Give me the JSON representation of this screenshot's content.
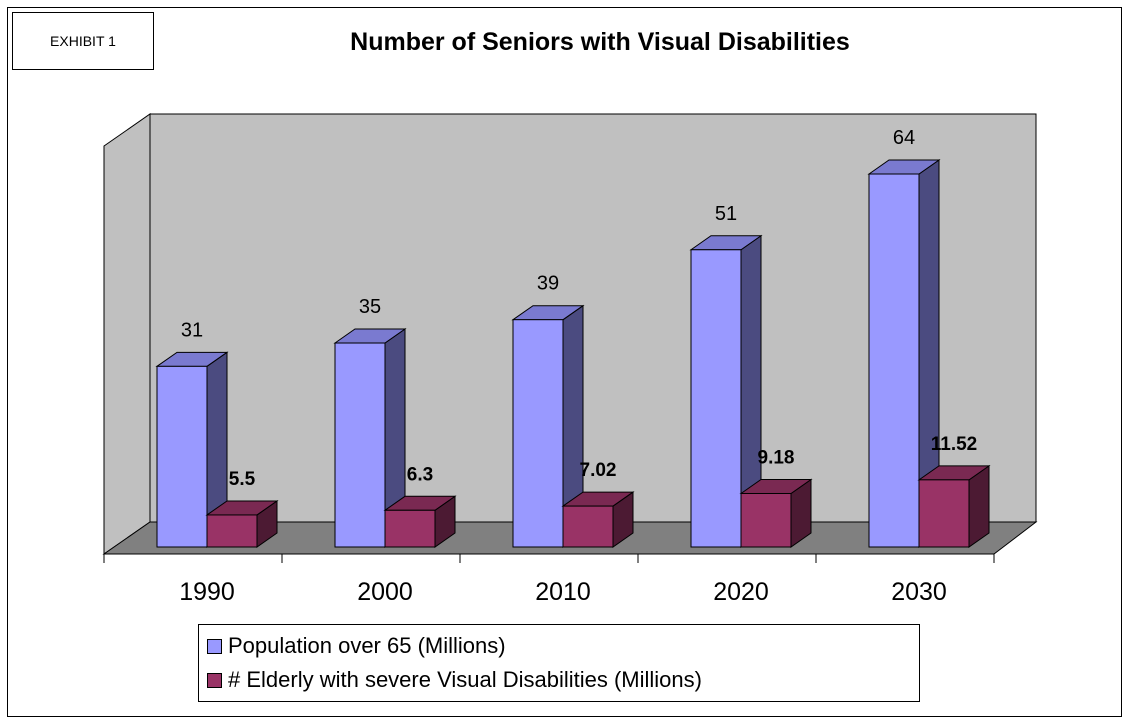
{
  "exhibit_label": "EXHIBIT 1",
  "chart_data": {
    "type": "bar",
    "title": "Number of Seniors with Visual Disabilities",
    "xlabel": "",
    "ylabel": "",
    "categories": [
      "1990",
      "2000",
      "2010",
      "2020",
      "2030"
    ],
    "series": [
      {
        "name": "Population over 65 (Millions)",
        "values": [
          31,
          35,
          39,
          51,
          64
        ],
        "color": "#9999FF",
        "side_color": "#4B4B80",
        "top_color": "#7A7AD0",
        "labels": [
          "31",
          "35",
          "39",
          "51",
          "64"
        ]
      },
      {
        "name": "# Elderly with severe Visual Disabilities (Millions)",
        "values": [
          5.5,
          6.3,
          7.02,
          9.18,
          11.52
        ],
        "color": "#993366",
        "side_color": "#4C1A33",
        "top_color": "#7A2952",
        "labels": [
          "5.5",
          "6.3",
          "7.02",
          "9.18",
          "11.52"
        ]
      }
    ],
    "ylim": [
      0,
      64
    ],
    "three_d": true,
    "grid": false,
    "legend_position": "bottom",
    "wall_color": "#C0C0C0",
    "floor_color": "#808080"
  }
}
